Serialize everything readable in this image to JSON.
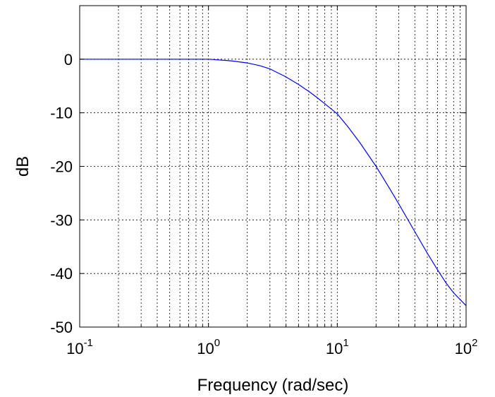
{
  "chart_data": {
    "type": "line",
    "title": "",
    "xlabel": "Frequency (rad/sec)",
    "ylabel": "dB",
    "xscale": "log",
    "xlim": [
      0.1,
      100
    ],
    "ylim": [
      -50,
      10
    ],
    "grid": true,
    "x_ticks": [
      {
        "base": "10",
        "exp": "-1",
        "value": 0.1
      },
      {
        "base": "10",
        "exp": "0",
        "value": 1
      },
      {
        "base": "10",
        "exp": "1",
        "value": 10
      },
      {
        "base": "10",
        "exp": "2",
        "value": 100
      }
    ],
    "y_ticks": [
      {
        "label": "0",
        "value": 0
      },
      {
        "label": "-10",
        "value": -10
      },
      {
        "label": "-20",
        "value": -20
      },
      {
        "label": "-30",
        "value": -30
      },
      {
        "label": "-40",
        "value": -40
      },
      {
        "label": "-50",
        "value": -50
      }
    ],
    "series": [
      {
        "color": "#0000ff",
        "x": [
          0.1,
          0.2,
          0.5,
          1.0,
          1.5,
          2.0,
          2.5,
          3.0,
          4.0,
          5.0,
          6.0,
          7.0,
          8.0,
          10.0,
          12.0,
          15.0,
          20.0,
          25.0,
          30.0,
          40.0,
          50.0,
          60.0,
          70.0,
          80.0,
          100.0
        ],
        "y": [
          0,
          0,
          0,
          0,
          -0.3,
          -0.7,
          -1.2,
          -1.8,
          -3.3,
          -4.7,
          -6.0,
          -7.2,
          -8.3,
          -10.2,
          -12.5,
          -15.6,
          -20.0,
          -23.8,
          -27.0,
          -32.2,
          -36.2,
          -39.3,
          -41.8,
          -43.6,
          -46.0
        ]
      }
    ]
  }
}
